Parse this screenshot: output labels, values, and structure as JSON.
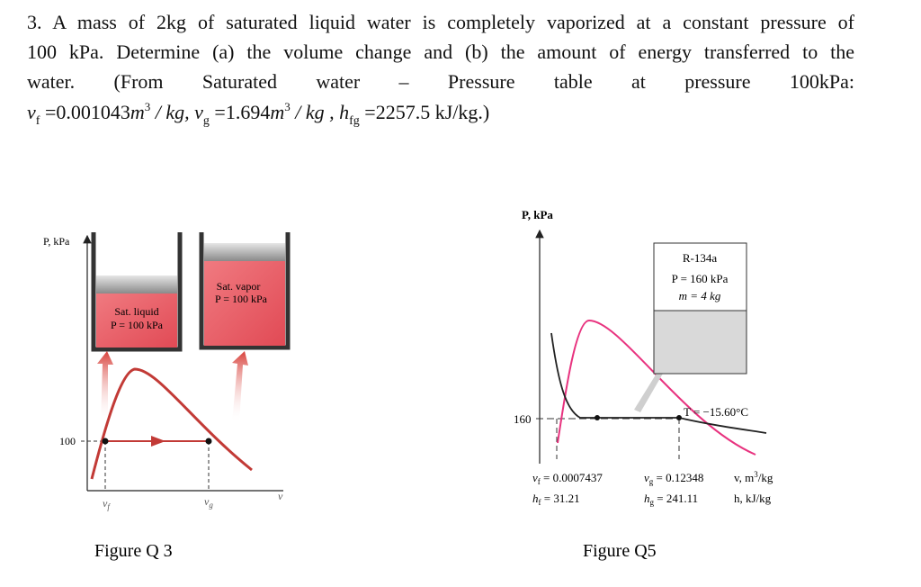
{
  "problem": {
    "lines": [
      "3. A mass of 2kg of saturated liquid water is completely vaporized at a constant pressure of",
      "100 kPa. Determine (a) the volume change and (b) the amount of energy transferred to the",
      "water. (From Saturated water – Pressure table at pressure 100kPa:"
    ],
    "formula": [
      "v",
      "f",
      " =0.001043",
      "m",
      "3",
      " / kg,  v",
      "g",
      " =1.694",
      "m",
      "3",
      " / kg , h",
      "fg",
      " =2257.5 kJ/kg.)"
    ]
  },
  "figure_q3": {
    "y_axis_label": "P, kPa",
    "pressure_tick": "100",
    "x_labels": [
      [
        "v",
        "f"
      ],
      [
        "v",
        "g"
      ],
      [
        "v"
      ]
    ],
    "liquid_label": [
      "Sat. liquid",
      "P = 100 kPa"
    ],
    "vapor_label": [
      "Sat. vapor",
      "P = 100 kPa"
    ],
    "caption": "Figure Q 3"
  },
  "figure_q5": {
    "y_axis_label": "P, kPa",
    "pressure_tick": "160",
    "box": [
      "R-134a",
      "P = 160 kPa",
      "m = 4 kg"
    ],
    "isotherm_label": "T = −15.60°C",
    "v_labels": [
      [
        "v",
        "f",
        " = 0.0007437"
      ],
      [
        "v",
        "g",
        " = 0.12348"
      ],
      [
        "v, m",
        "3",
        "/kg"
      ]
    ],
    "h_labels": [
      [
        "h",
        "f",
        " = 31.21"
      ],
      [
        "h",
        "g",
        " = 241.11"
      ],
      [
        "h, kJ/kg"
      ]
    ],
    "caption": "Figure Q5"
  }
}
